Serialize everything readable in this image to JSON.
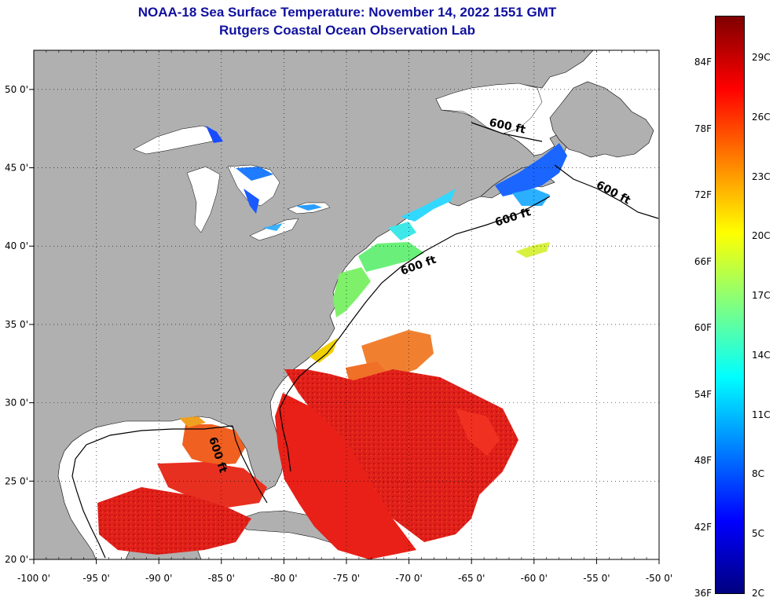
{
  "header": {
    "title": "NOAA-18 Sea Surface Temperature:  November 14, 2022 1551 GMT",
    "subtitle": "Rutgers Coastal Ocean Observation Lab"
  },
  "axes": {
    "lon_labels": [
      "-100 0'",
      "-95 0'",
      "-90 0'",
      "-85 0'",
      "-80 0'",
      "-75 0'",
      "-70 0'",
      "-65 0'",
      "-60 0'",
      "-55 0'",
      "-50 0'"
    ],
    "lat_labels": [
      "50 0'",
      "45 0'",
      "40 0'",
      "35 0'",
      "30 0'",
      "25 0'",
      "20 0'"
    ],
    "lon_range": [
      -100,
      -50
    ],
    "lat_range": [
      20,
      52.5
    ]
  },
  "contour": {
    "label": "600 ft"
  },
  "colorbar": {
    "fahrenheit_labels": [
      "84F",
      "78F",
      "72F",
      "66F",
      "60F",
      "54F",
      "48F",
      "42F",
      "36F"
    ],
    "celsius_labels": [
      "29C",
      "26C",
      "23C",
      "20C",
      "17C",
      "14C",
      "11C",
      "8C",
      "5C",
      "2C"
    ],
    "colors": [
      "#00007f",
      "#0000ff",
      "#0080ff",
      "#00ffff",
      "#80ff80",
      "#ffff00",
      "#ff8000",
      "#ff0000",
      "#7f0000"
    ]
  },
  "colors": {
    "land": "#b0b0b0",
    "ocean": "#ffffff",
    "title": "#1010a0"
  }
}
